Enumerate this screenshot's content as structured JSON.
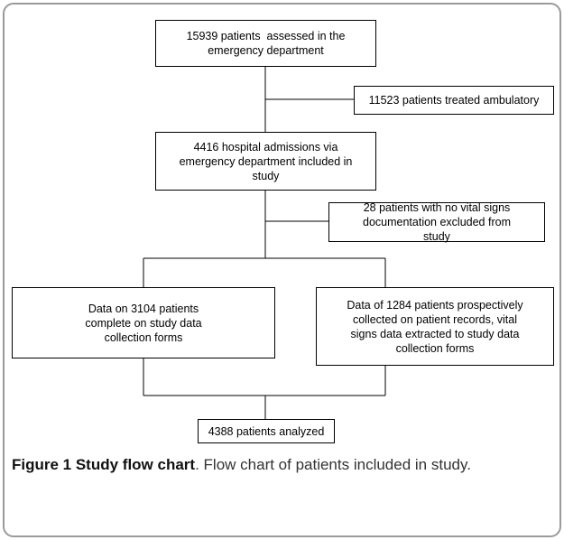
{
  "nodes": [
    {
      "lines": [
        "15939 patients  assessed in the",
        "emergency department"
      ]
    },
    {
      "lines": [
        "11523 patients treated ambulatory"
      ]
    },
    {
      "lines": [
        "4416 hospital admissions via",
        "emergency department included in",
        "study"
      ]
    },
    {
      "lines": [
        "28 patients with no vital signs",
        "documentation excluded from",
        "study"
      ]
    },
    {
      "lines": [
        "Data on 3104 patients",
        "complete on study data",
        "collection forms"
      ]
    },
    {
      "lines": [
        "Data of 1284 patients prospectively",
        "collected on patient records, vital",
        "signs data extracted to study data",
        "collection forms"
      ]
    },
    {
      "lines": [
        "4388 patients analyzed"
      ]
    }
  ],
  "caption": {
    "title": "Figure 1 Study flow chart",
    "text": ". Flow chart of patients included in study."
  }
}
